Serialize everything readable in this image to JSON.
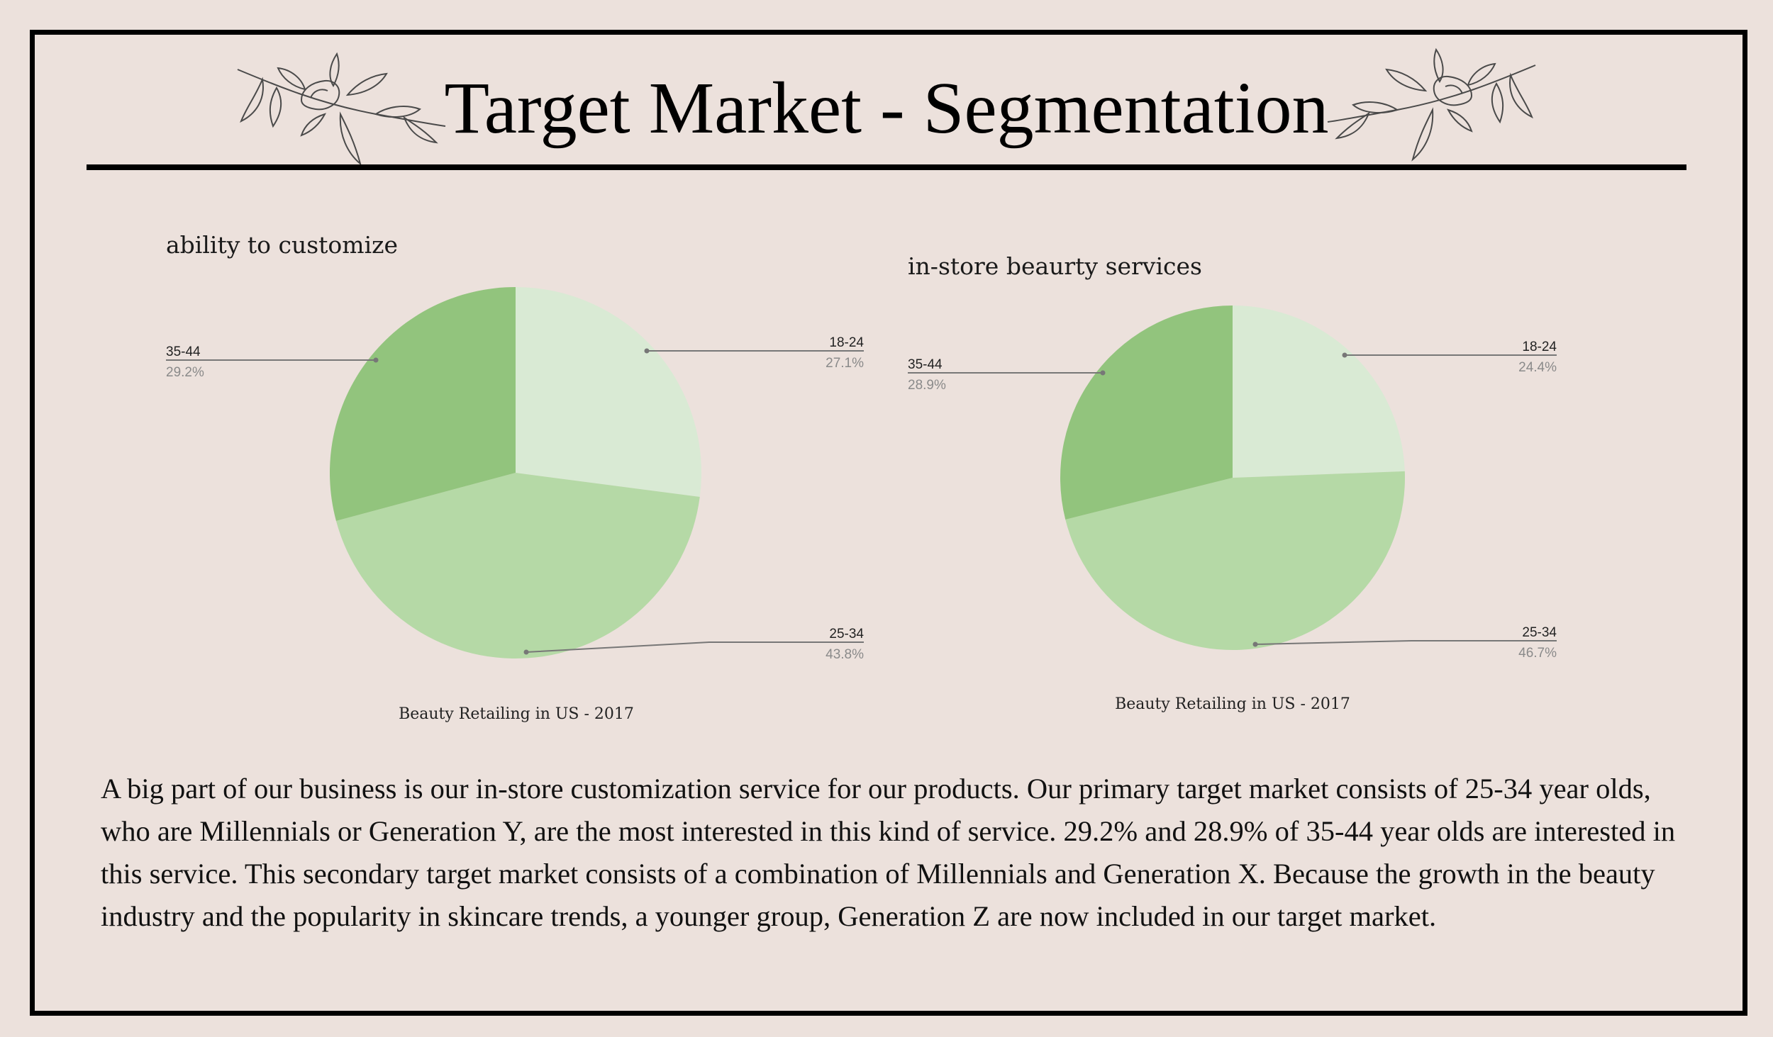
{
  "page": {
    "title": "Target Market - Segmentation",
    "body_text": " A big part of our business is our in-store customization service for our products. Our primary target market consists of 25-34 year olds, who are Millennials or Generation Y, are the most interested in this kind of service. 29.2% and 28.9% of 35-44 year olds are interested in this service. This secondary target market consists of a combination of Millennials and Generation X. Because the growth in the beauty industry and the popularity in skincare trends, a younger group, Generation Z are now included in our target market."
  },
  "colors": {
    "background": "#ece1dc",
    "slice_18_24": "#d9ead4",
    "slice_25_34": "#b5d9a6",
    "slice_35_44": "#92c47d",
    "leader_line": "#777777"
  },
  "icons": {
    "left_ornament": "floral-branch-icon",
    "right_ornament": "floral-branch-icon"
  },
  "chart_data": [
    {
      "type": "pie",
      "title": "ability to customize",
      "caption": "Beauty Retailing in US - 2017",
      "start": "12 o'clock, clockwise",
      "slices": [
        {
          "label": "18-24",
          "value": 27.1,
          "display": "27.1%"
        },
        {
          "label": "25-34",
          "value": 43.8,
          "display": "43.8%"
        },
        {
          "label": "35-44",
          "value": 29.2,
          "display": "29.2%"
        }
      ]
    },
    {
      "type": "pie",
      "title": "in-store beaurty services",
      "caption": "Beauty Retailing in US - 2017",
      "start": "12 o'clock, clockwise",
      "slices": [
        {
          "label": "18-24",
          "value": 24.4,
          "display": "24.4%"
        },
        {
          "label": "25-34",
          "value": 46.7,
          "display": "46.7%"
        },
        {
          "label": "35-44",
          "value": 28.9,
          "display": "28.9%"
        }
      ]
    }
  ]
}
